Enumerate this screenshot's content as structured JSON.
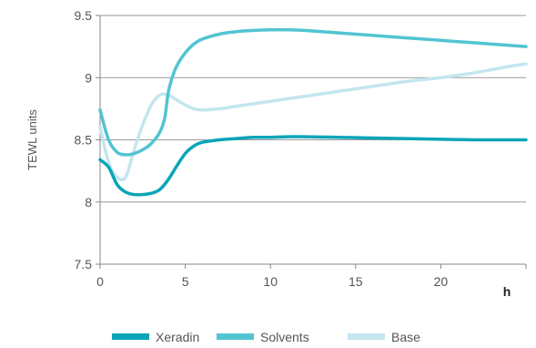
{
  "chart_data": {
    "type": "line",
    "title": "",
    "xlabel": "h",
    "ylabel": "TEWL units",
    "xlim": [
      0,
      25
    ],
    "ylim": [
      7.5,
      9.5
    ],
    "x_ticks": [
      "0",
      "5",
      "10",
      "15",
      "20"
    ],
    "y_ticks": [
      "7.5",
      "8",
      "8.5",
      "9",
      "9.5"
    ],
    "x_tick_values": [
      0,
      5,
      10,
      15,
      20
    ],
    "y_tick_values": [
      7.5,
      8,
      8.5,
      9,
      9.5
    ],
    "grid": "horizontal",
    "legend_position": "bottom",
    "series": [
      {
        "name": "Xeradin",
        "color": "#0aa5b8",
        "x": [
          0,
          0.5,
          1,
          1.5,
          2,
          2.5,
          3,
          3.5,
          4,
          4.5,
          5,
          5.5,
          6,
          7,
          8,
          9,
          10,
          11,
          12,
          14,
          16,
          18,
          20,
          22,
          24,
          25
        ],
        "y": [
          8.34,
          8.28,
          8.14,
          8.08,
          8.06,
          8.06,
          8.07,
          8.1,
          8.18,
          8.29,
          8.39,
          8.45,
          8.48,
          8.5,
          8.51,
          8.52,
          8.52,
          8.525,
          8.525,
          8.52,
          8.515,
          8.51,
          8.505,
          8.5,
          8.5,
          8.5
        ]
      },
      {
        "name": "Solvents",
        "color": "#52c4d1",
        "x": [
          0,
          0.5,
          1,
          1.5,
          2,
          2.5,
          3,
          3.5,
          3.8,
          4,
          4.3,
          4.6,
          5,
          5.5,
          6,
          7,
          8,
          9,
          10,
          11,
          12,
          14,
          16,
          18,
          20,
          22,
          24,
          25
        ],
        "y": [
          8.74,
          8.5,
          8.4,
          8.38,
          8.39,
          8.42,
          8.47,
          8.56,
          8.68,
          8.88,
          9.03,
          9.12,
          9.2,
          9.27,
          9.31,
          9.35,
          9.37,
          9.38,
          9.385,
          9.385,
          9.38,
          9.36,
          9.34,
          9.32,
          9.3,
          9.28,
          9.26,
          9.25
        ]
      },
      {
        "name": "Base",
        "color": "#c4e6ee",
        "x": [
          0,
          0.5,
          1,
          1.5,
          2,
          2.5,
          3,
          3.5,
          4,
          4.5,
          5,
          5.5,
          6,
          7,
          8,
          10,
          12,
          14,
          16,
          18,
          20,
          22,
          24,
          25
        ],
        "y": [
          8.6,
          8.32,
          8.2,
          8.2,
          8.42,
          8.62,
          8.78,
          8.86,
          8.86,
          8.82,
          8.78,
          8.75,
          8.74,
          8.75,
          8.77,
          8.81,
          8.85,
          8.89,
          8.93,
          8.97,
          9.0,
          9.04,
          9.09,
          9.11
        ]
      }
    ]
  }
}
